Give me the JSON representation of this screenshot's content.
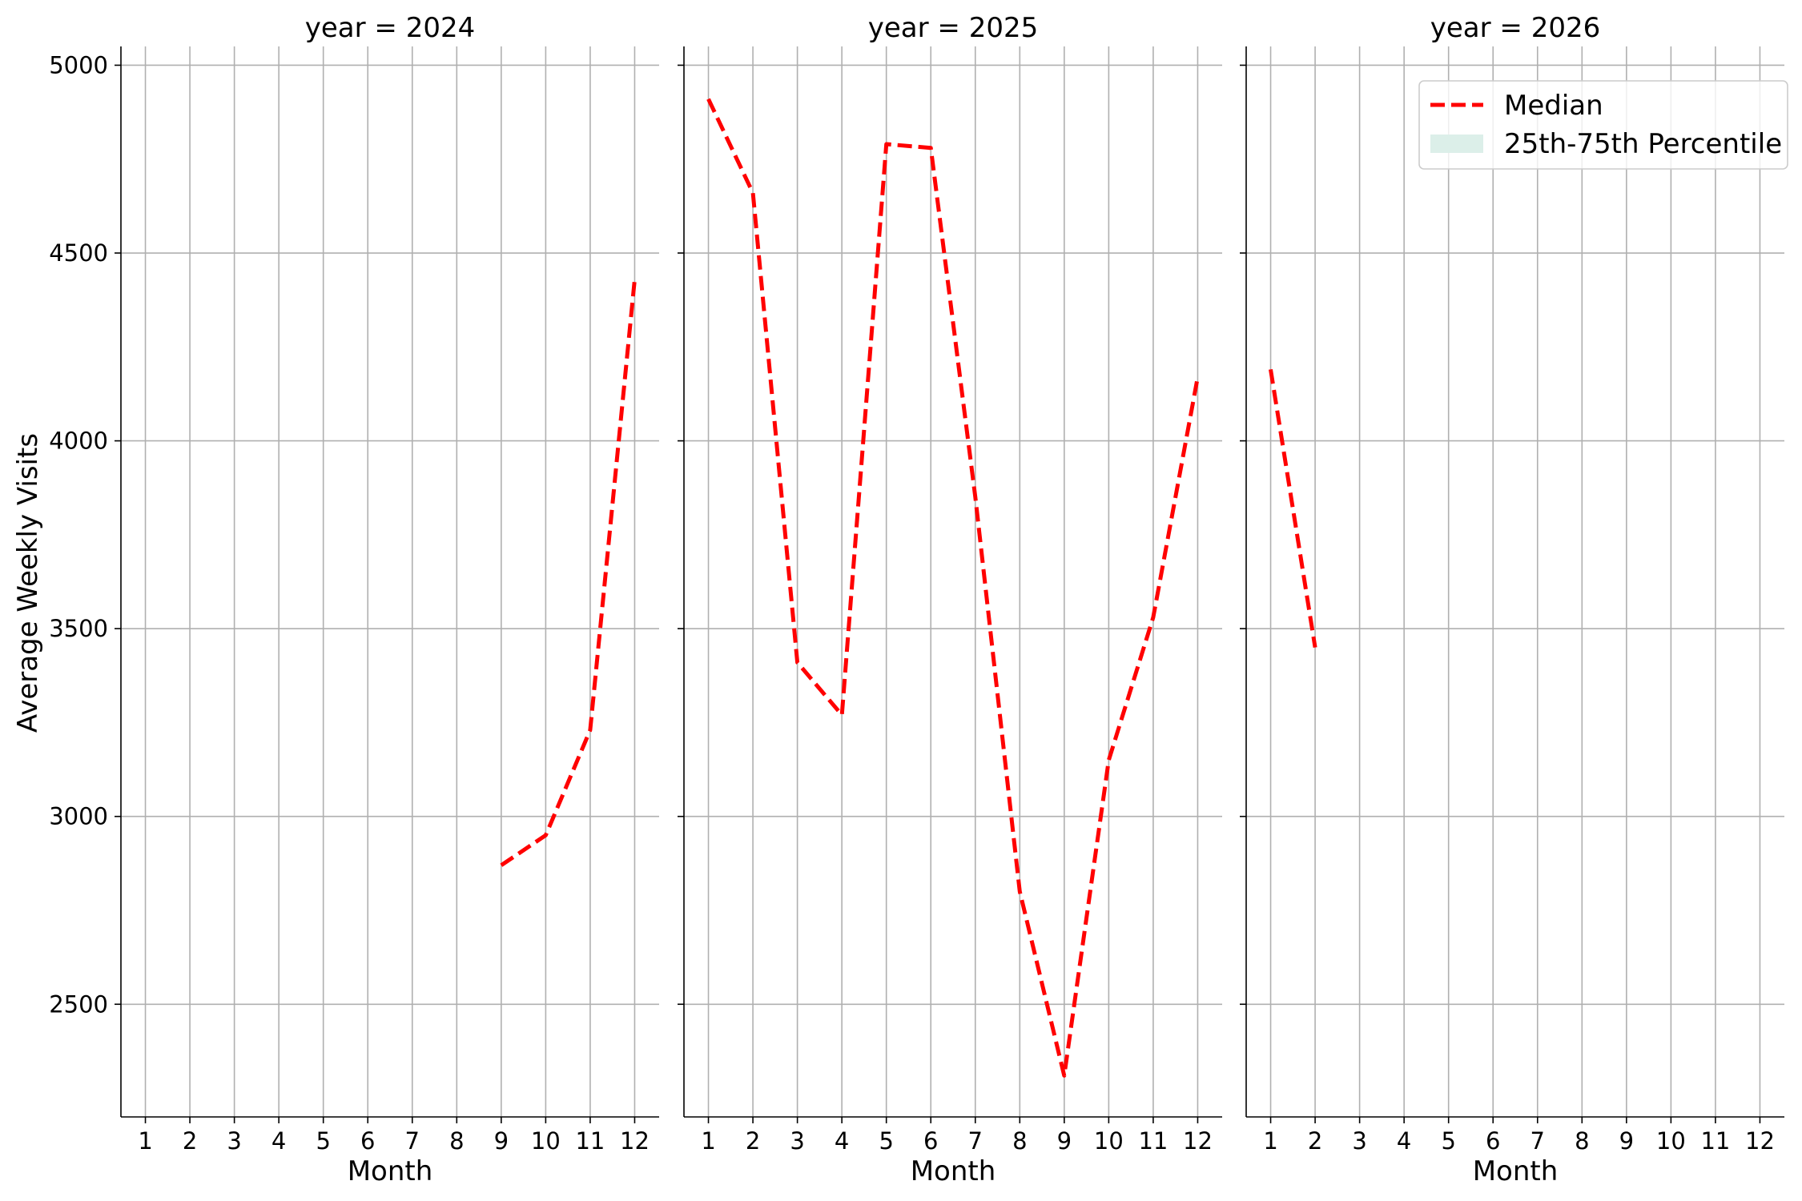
{
  "chart_data": {
    "type": "line",
    "facet_variable": "year",
    "ylabel": "Average Weekly Visits",
    "ylim": [
      2200,
      5050
    ],
    "yticks": [
      2500,
      3000,
      3500,
      4000,
      4500,
      5000
    ],
    "xlabel": "Month",
    "xlim": [
      0.45,
      12.55
    ],
    "xticks": [
      1,
      2,
      3,
      4,
      5,
      6,
      7,
      8,
      9,
      10,
      11,
      12
    ],
    "grid": true,
    "legend": {
      "placement": "top-right of last panel",
      "entries": [
        {
          "label": "Median",
          "style": "dashed-line",
          "color": "#ff0000"
        },
        {
          "label": "25th-75th Percentile",
          "style": "filled-band",
          "color": "#dcefe9"
        }
      ]
    },
    "panels": [
      {
        "title": "year = 2024",
        "series": [
          {
            "name": "Median",
            "x": [
              9,
              10,
              11,
              12
            ],
            "y": [
              2870,
              2950,
              3230,
              4430
            ]
          }
        ]
      },
      {
        "title": "year = 2025",
        "series": [
          {
            "name": "Median",
            "x": [
              1,
              2,
              3,
              4,
              5,
              6,
              7,
              8,
              9,
              10,
              11,
              12
            ],
            "y": [
              4910,
              4660,
              3410,
              3270,
              4790,
              4780,
              3850,
              2800,
              2310,
              3150,
              3530,
              4170
            ]
          }
        ]
      },
      {
        "title": "year = 2026",
        "series": [
          {
            "name": "Median",
            "x": [
              1,
              2
            ],
            "y": [
              4190,
              3450
            ]
          }
        ]
      }
    ]
  }
}
